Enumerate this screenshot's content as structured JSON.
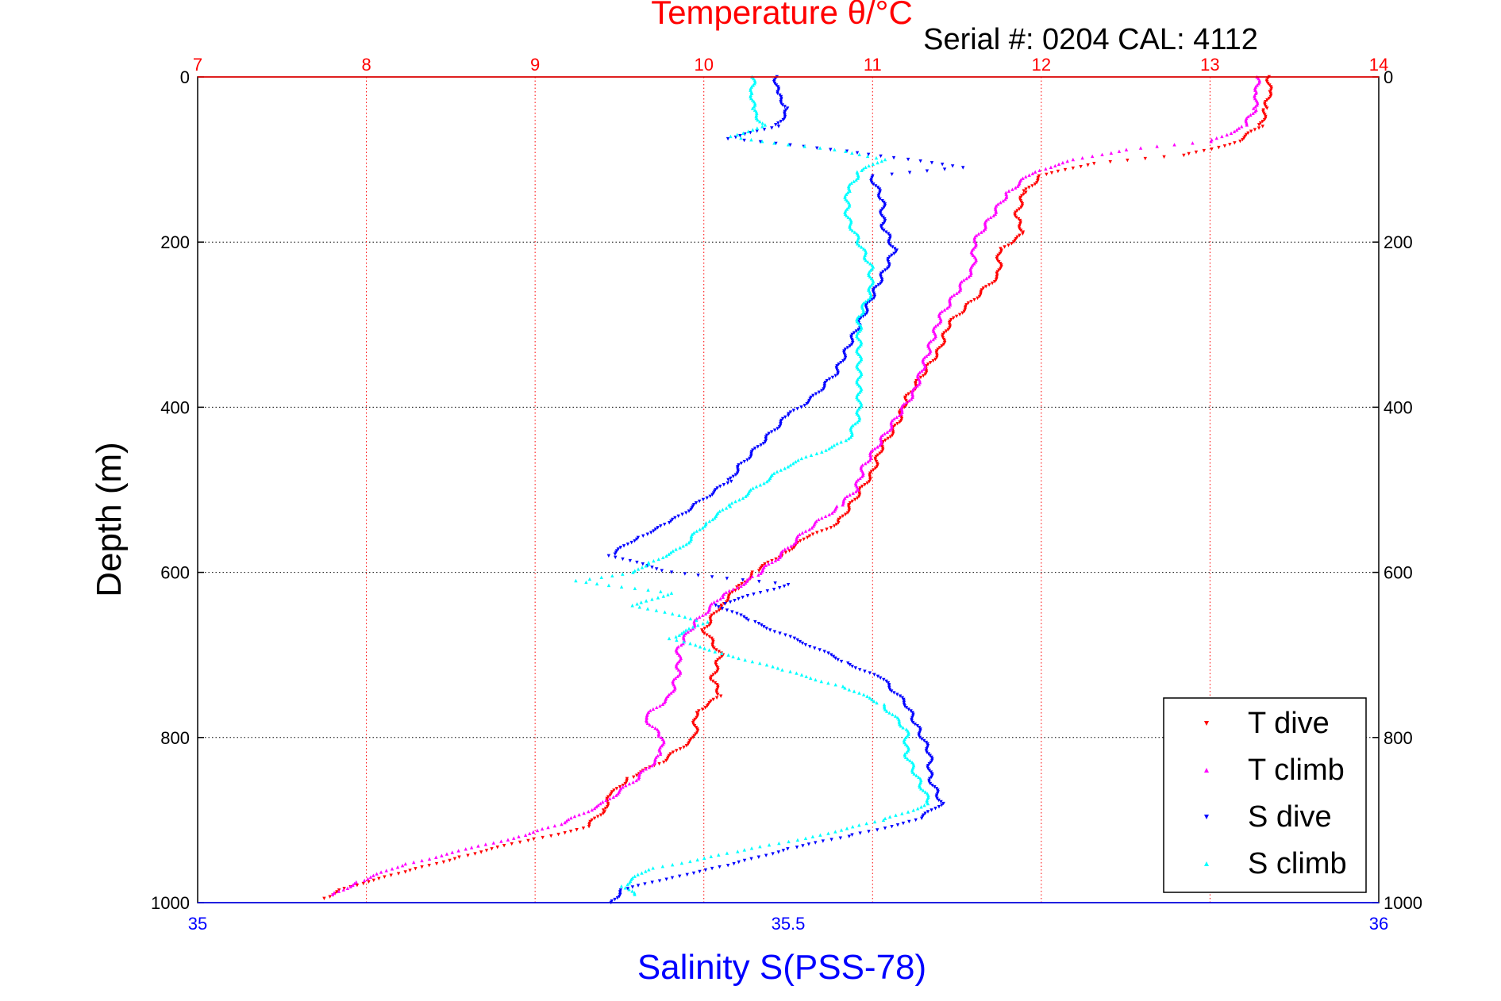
{
  "chart_data": {
    "type": "scatter",
    "title": "Temperature θ/°C",
    "subtitle": "Serial #: 0204  CAL: 4112",
    "ylabel": "Depth (m)",
    "xlabel_bottom": "Salinity S(PSS-78)",
    "y_axis": {
      "range": [
        0,
        1000
      ],
      "reversed": true,
      "ticks": [
        0,
        200,
        400,
        600,
        800,
        1000
      ]
    },
    "x_top": {
      "range": [
        7,
        14
      ],
      "ticks": [
        7,
        8,
        9,
        10,
        11,
        12,
        13,
        14
      ],
      "color": "#ff0000"
    },
    "x_bottom": {
      "range": [
        35,
        36
      ],
      "ticks": [
        35,
        35.5,
        36
      ],
      "tick_labels": [
        "35",
        "35.5",
        "36"
      ],
      "color": "#0000ff"
    },
    "grid": true,
    "legend_position": "bottom-right",
    "series": [
      {
        "name": "T dive",
        "axis": "top",
        "color": "#ff0000",
        "marker": "triangle-down",
        "points": [
          [
            13.35,
            0
          ],
          [
            13.35,
            20
          ],
          [
            13.33,
            40
          ],
          [
            13.3,
            60
          ],
          [
            13.15,
            80
          ],
          [
            12.85,
            95
          ],
          [
            12.3,
            105
          ],
          [
            12.0,
            120
          ],
          [
            11.9,
            140
          ],
          [
            11.85,
            170
          ],
          [
            11.9,
            190
          ],
          [
            11.75,
            210
          ],
          [
            11.75,
            240
          ],
          [
            11.6,
            270
          ],
          [
            11.45,
            300
          ],
          [
            11.4,
            330
          ],
          [
            11.3,
            360
          ],
          [
            11.2,
            390
          ],
          [
            11.15,
            420
          ],
          [
            11.05,
            450
          ],
          [
            11.0,
            480
          ],
          [
            10.9,
            510
          ],
          [
            10.8,
            540
          ],
          [
            10.6,
            560
          ],
          [
            10.45,
            580
          ],
          [
            10.3,
            600
          ],
          [
            10.2,
            620
          ],
          [
            10.1,
            640
          ],
          [
            10.0,
            670
          ],
          [
            10.1,
            700
          ],
          [
            10.05,
            730
          ],
          [
            10.1,
            750
          ],
          [
            9.95,
            770
          ],
          [
            9.95,
            800
          ],
          [
            9.75,
            830
          ],
          [
            9.55,
            850
          ],
          [
            9.45,
            870
          ],
          [
            9.4,
            890
          ],
          [
            9.3,
            910
          ],
          [
            8.95,
            925
          ],
          [
            8.55,
            945
          ],
          [
            8.2,
            965
          ],
          [
            8.0,
            975
          ],
          [
            7.85,
            985
          ],
          [
            7.75,
            995
          ]
        ]
      },
      {
        "name": "T climb",
        "axis": "top",
        "color": "#ff00ff",
        "marker": "triangle-up",
        "points": [
          [
            13.28,
            0
          ],
          [
            13.28,
            20
          ],
          [
            13.26,
            40
          ],
          [
            13.2,
            60
          ],
          [
            13.0,
            78
          ],
          [
            12.5,
            88
          ],
          [
            12.2,
            100
          ],
          [
            11.95,
            115
          ],
          [
            11.8,
            140
          ],
          [
            11.7,
            170
          ],
          [
            11.6,
            200
          ],
          [
            11.6,
            230
          ],
          [
            11.5,
            260
          ],
          [
            11.4,
            290
          ],
          [
            11.35,
            320
          ],
          [
            11.3,
            350
          ],
          [
            11.25,
            380
          ],
          [
            11.15,
            410
          ],
          [
            11.05,
            440
          ],
          [
            10.95,
            470
          ],
          [
            10.9,
            500
          ],
          [
            10.8,
            520
          ],
          [
            10.6,
            550
          ],
          [
            10.45,
            580
          ],
          [
            10.3,
            605
          ],
          [
            10.1,
            630
          ],
          [
            9.95,
            660
          ],
          [
            9.85,
            690
          ],
          [
            9.85,
            720
          ],
          [
            9.8,
            750
          ],
          [
            9.65,
            775
          ],
          [
            9.75,
            800
          ],
          [
            9.75,
            820
          ],
          [
            9.6,
            850
          ],
          [
            9.4,
            880
          ],
          [
            9.15,
            905
          ],
          [
            8.9,
            920
          ],
          [
            8.6,
            935
          ],
          [
            8.2,
            955
          ],
          [
            7.95,
            975
          ],
          [
            7.8,
            990
          ]
        ]
      },
      {
        "name": "S dive",
        "axis": "bottom",
        "color": "#0000ff",
        "marker": "triangle-down",
        "points": [
          [
            35.49,
            0
          ],
          [
            35.49,
            20
          ],
          [
            35.5,
            40
          ],
          [
            35.49,
            60
          ],
          [
            35.45,
            75
          ],
          [
            35.55,
            90
          ],
          [
            35.6,
            100
          ],
          [
            35.65,
            110
          ],
          [
            35.57,
            120
          ],
          [
            35.58,
            150
          ],
          [
            35.58,
            180
          ],
          [
            35.59,
            210
          ],
          [
            35.58,
            240
          ],
          [
            35.57,
            270
          ],
          [
            35.56,
            300
          ],
          [
            35.55,
            330
          ],
          [
            35.54,
            360
          ],
          [
            35.52,
            390
          ],
          [
            35.5,
            410
          ],
          [
            35.48,
            440
          ],
          [
            35.46,
            470
          ],
          [
            35.45,
            490
          ],
          [
            35.42,
            520
          ],
          [
            35.4,
            540
          ],
          [
            35.37,
            560
          ],
          [
            35.35,
            580
          ],
          [
            35.4,
            600
          ],
          [
            35.5,
            615
          ],
          [
            35.44,
            640
          ],
          [
            35.47,
            660
          ],
          [
            35.52,
            690
          ],
          [
            35.55,
            710
          ],
          [
            35.58,
            730
          ],
          [
            35.6,
            760
          ],
          [
            35.61,
            790
          ],
          [
            35.62,
            820
          ],
          [
            35.62,
            850
          ],
          [
            35.63,
            880
          ],
          [
            35.61,
            900
          ],
          [
            35.55,
            920
          ],
          [
            35.5,
            935
          ],
          [
            35.45,
            955
          ],
          [
            35.4,
            970
          ],
          [
            35.36,
            985
          ],
          [
            35.35,
            1000
          ]
        ]
      },
      {
        "name": "S climb",
        "axis": "bottom",
        "color": "#00ffff",
        "marker": "triangle-up",
        "points": [
          [
            35.47,
            0
          ],
          [
            35.47,
            20
          ],
          [
            35.47,
            40
          ],
          [
            35.48,
            60
          ],
          [
            35.45,
            72
          ],
          [
            35.5,
            82
          ],
          [
            35.55,
            90
          ],
          [
            35.58,
            100
          ],
          [
            35.56,
            115
          ],
          [
            35.55,
            140
          ],
          [
            35.55,
            170
          ],
          [
            35.56,
            200
          ],
          [
            35.57,
            230
          ],
          [
            35.57,
            260
          ],
          [
            35.56,
            290
          ],
          [
            35.56,
            320
          ],
          [
            35.56,
            350
          ],
          [
            35.56,
            380
          ],
          [
            35.56,
            410
          ],
          [
            35.55,
            440
          ],
          [
            35.5,
            470
          ],
          [
            35.47,
            500
          ],
          [
            35.45,
            520
          ],
          [
            35.43,
            540
          ],
          [
            35.41,
            570
          ],
          [
            35.38,
            590
          ],
          [
            35.37,
            600
          ],
          [
            35.32,
            610
          ],
          [
            35.4,
            625
          ],
          [
            35.37,
            640
          ],
          [
            35.43,
            660
          ],
          [
            35.4,
            680
          ],
          [
            35.45,
            700
          ],
          [
            35.5,
            720
          ],
          [
            35.55,
            740
          ],
          [
            35.58,
            760
          ],
          [
            35.6,
            790
          ],
          [
            35.6,
            820
          ],
          [
            35.61,
            850
          ],
          [
            35.62,
            880
          ],
          [
            35.58,
            900
          ],
          [
            35.52,
            920
          ],
          [
            35.45,
            940
          ],
          [
            35.38,
            960
          ],
          [
            35.36,
            980
          ],
          [
            35.37,
            990
          ]
        ]
      }
    ]
  }
}
